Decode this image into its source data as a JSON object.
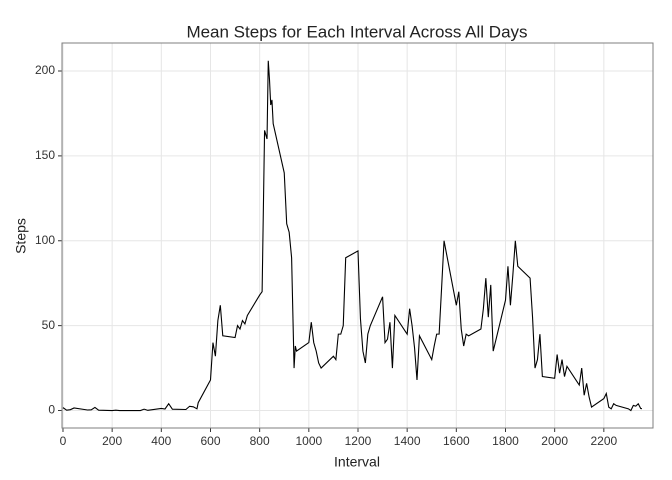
{
  "chart_data": {
    "type": "line",
    "title": "Mean Steps for Each Interval Across All Days",
    "xlabel": "Interval",
    "ylabel": "Steps",
    "x": [
      0,
      15,
      30,
      45,
      100,
      115,
      130,
      145,
      200,
      215,
      230,
      245,
      300,
      315,
      330,
      345,
      400,
      415,
      430,
      445,
      500,
      515,
      530,
      545,
      550,
      600,
      610,
      620,
      630,
      640,
      650,
      700,
      710,
      720,
      730,
      740,
      750,
      800,
      810,
      820,
      830,
      835,
      840,
      845,
      850,
      855,
      900,
      910,
      920,
      930,
      940,
      945,
      950,
      1000,
      1010,
      1020,
      1030,
      1040,
      1050,
      1100,
      1110,
      1120,
      1130,
      1140,
      1150,
      1200,
      1210,
      1220,
      1230,
      1240,
      1250,
      1300,
      1310,
      1320,
      1330,
      1340,
      1350,
      1400,
      1410,
      1420,
      1430,
      1440,
      1450,
      1500,
      1510,
      1520,
      1530,
      1540,
      1550,
      1600,
      1610,
      1620,
      1630,
      1640,
      1650,
      1700,
      1710,
      1720,
      1730,
      1740,
      1750,
      1800,
      1810,
      1820,
      1830,
      1840,
      1850,
      1900,
      1910,
      1920,
      1930,
      1940,
      1950,
      2000,
      2010,
      2020,
      2030,
      2040,
      2050,
      2100,
      2110,
      2120,
      2130,
      2140,
      2150,
      2200,
      2210,
      2220,
      2230,
      2240,
      2250,
      2300,
      2310,
      2320,
      2330,
      2340,
      2350,
      2355
    ],
    "series": [
      {
        "name": "Steps",
        "color": "#000000",
        "values": [
          1.7,
          0.2,
          0.5,
          1.5,
          0.3,
          0.4,
          1.8,
          0.2,
          0,
          0.2,
          0,
          0,
          0,
          0,
          0.8,
          0.1,
          1.2,
          0.9,
          4,
          0.8,
          0.6,
          2.5,
          2.2,
          1,
          4.6,
          18,
          40,
          32,
          53,
          62,
          44,
          43,
          50,
          48,
          53,
          51,
          56,
          68,
          70,
          165,
          160,
          206,
          195,
          180,
          183,
          169,
          140,
          110,
          105,
          90,
          25,
          38,
          35,
          40,
          52,
          40,
          35,
          28,
          25,
          32,
          30,
          45,
          45,
          50,
          90,
          94,
          54,
          35,
          28,
          45,
          50,
          67,
          40,
          42,
          52,
          25,
          56,
          45,
          60,
          50,
          37,
          18,
          44,
          30,
          38,
          45,
          45,
          72,
          100,
          62,
          70,
          48,
          38,
          45,
          44,
          48,
          60,
          78,
          55,
          74,
          35,
          65,
          85,
          62,
          80,
          100,
          85,
          78,
          55,
          25,
          30,
          45,
          20,
          19,
          33,
          22,
          30,
          20,
          26,
          15,
          25,
          9,
          16,
          8,
          2,
          7,
          10,
          2,
          1,
          4,
          3,
          1,
          0,
          3,
          2.6,
          4,
          1.2,
          1.1
        ]
      }
    ],
    "xlim": [
      -4,
      2400
    ],
    "ylim": [
      -10.3,
      216.5
    ],
    "xticks": [
      0,
      200,
      400,
      600,
      800,
      1000,
      1200,
      1400,
      1600,
      1800,
      2000,
      2200
    ],
    "yticks": [
      0,
      50,
      100,
      150,
      200
    ],
    "grid": true
  }
}
